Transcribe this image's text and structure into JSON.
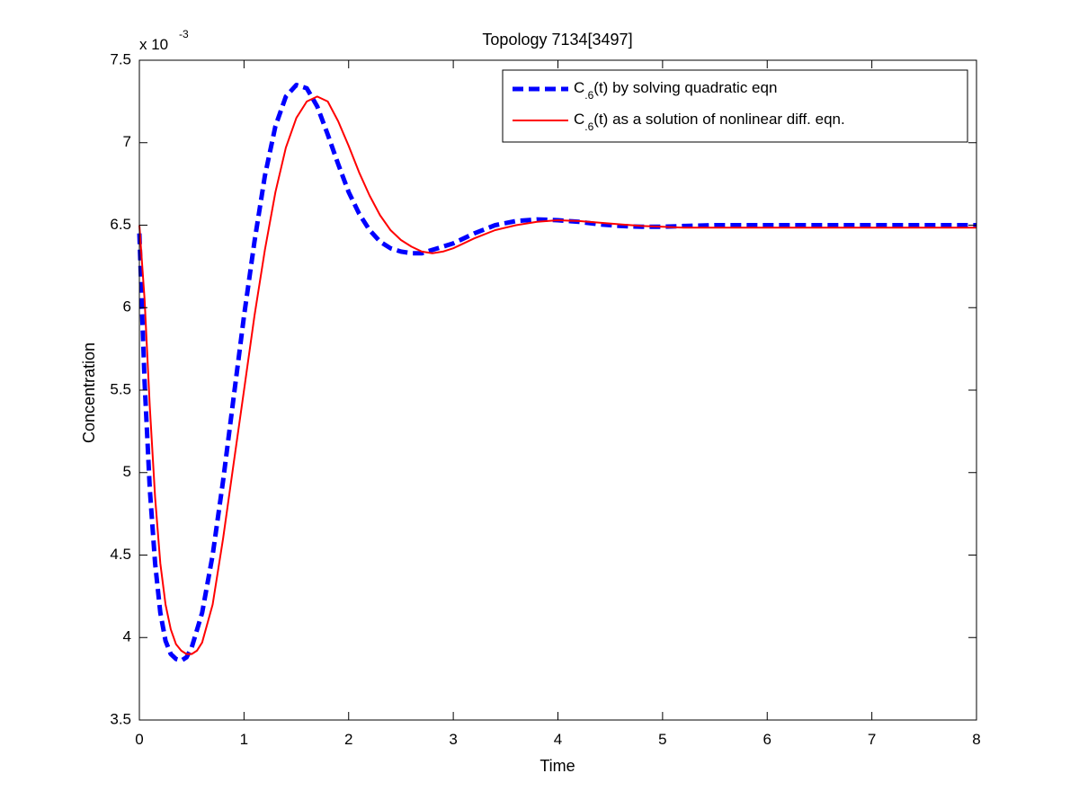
{
  "chart_data": {
    "type": "line",
    "title": "Topology 7134[3497]",
    "xlabel": "Time",
    "ylabel": "Concentration",
    "y_exponent_base": "x 10",
    "y_exponent_power": "-3",
    "xlim": [
      0,
      8
    ],
    "ylim": [
      3.5,
      7.5
    ],
    "y_multiplier": 0.001,
    "x_ticks": [
      0,
      1,
      2,
      3,
      4,
      5,
      6,
      7,
      8
    ],
    "y_ticks": [
      3.5,
      4,
      4.5,
      5,
      5.5,
      6,
      6.5,
      7,
      7.5
    ],
    "x_tick_labels": [
      "0",
      "1",
      "2",
      "3",
      "4",
      "5",
      "6",
      "7",
      "8"
    ],
    "y_tick_labels": [
      "3.5",
      "4",
      "4.5",
      "5",
      "5.5",
      "6",
      "6.5",
      "7",
      "7.5"
    ],
    "grid": false,
    "legend_position": "top-right",
    "series": [
      {
        "name": "C.6(t) by solving quadratic eqn",
        "legend_pre": "C",
        "legend_sub": ".6",
        "legend_post": "(t) by solving quadratic eqn",
        "color": "#0000ff",
        "style": "dashed",
        "x": [
          0,
          0.05,
          0.1,
          0.15,
          0.2,
          0.25,
          0.3,
          0.35,
          0.4,
          0.45,
          0.5,
          0.6,
          0.7,
          0.8,
          0.9,
          1.0,
          1.1,
          1.2,
          1.3,
          1.4,
          1.5,
          1.6,
          1.7,
          1.8,
          1.9,
          2.0,
          2.1,
          2.2,
          2.3,
          2.4,
          2.5,
          2.6,
          2.7,
          2.8,
          2.9,
          3.0,
          3.2,
          3.4,
          3.6,
          3.8,
          4.0,
          4.2,
          4.4,
          4.6,
          4.8,
          5.0,
          5.2,
          5.5,
          6.0,
          6.5,
          7.0,
          7.5,
          8.0
        ],
        "y": [
          6.45,
          5.55,
          4.9,
          4.45,
          4.15,
          3.98,
          3.9,
          3.87,
          3.86,
          3.88,
          3.94,
          4.15,
          4.5,
          4.95,
          5.45,
          5.95,
          6.4,
          6.8,
          7.1,
          7.28,
          7.35,
          7.33,
          7.22,
          7.05,
          6.87,
          6.7,
          6.57,
          6.47,
          6.4,
          6.36,
          6.34,
          6.33,
          6.33,
          6.35,
          6.37,
          6.39,
          6.45,
          6.5,
          6.525,
          6.535,
          6.53,
          6.52,
          6.505,
          6.495,
          6.49,
          6.49,
          6.495,
          6.5,
          6.5,
          6.5,
          6.5,
          6.5,
          6.5
        ]
      },
      {
        "name": "C.6(t) as a solution of nonlinear diff. eqn.",
        "legend_pre": "C",
        "legend_sub": ".6",
        "legend_post": "(t) as a solution of nonlinear diff. eqn.",
        "color": "#ff0000",
        "style": "solid",
        "x": [
          0,
          0.05,
          0.1,
          0.15,
          0.2,
          0.25,
          0.3,
          0.35,
          0.4,
          0.45,
          0.5,
          0.55,
          0.6,
          0.7,
          0.8,
          0.9,
          1.0,
          1.1,
          1.2,
          1.3,
          1.4,
          1.5,
          1.6,
          1.7,
          1.8,
          1.9,
          2.0,
          2.1,
          2.2,
          2.3,
          2.4,
          2.5,
          2.6,
          2.7,
          2.8,
          2.9,
          3.0,
          3.2,
          3.4,
          3.6,
          3.8,
          4.0,
          4.2,
          4.4,
          4.6,
          4.8,
          5.0,
          5.2,
          5.5,
          6.0,
          6.5,
          7.0,
          7.5,
          8.0
        ],
        "y": [
          6.5,
          6.05,
          5.4,
          4.85,
          4.45,
          4.2,
          4.05,
          3.96,
          3.92,
          3.9,
          3.9,
          3.92,
          3.97,
          4.2,
          4.6,
          5.05,
          5.5,
          5.95,
          6.35,
          6.7,
          6.97,
          7.15,
          7.25,
          7.28,
          7.25,
          7.13,
          6.98,
          6.82,
          6.68,
          6.56,
          6.47,
          6.41,
          6.37,
          6.34,
          6.33,
          6.34,
          6.36,
          6.42,
          6.47,
          6.5,
          6.52,
          6.53,
          6.525,
          6.515,
          6.505,
          6.495,
          6.49,
          6.485,
          6.485,
          6.485,
          6.485,
          6.485,
          6.485,
          6.485
        ]
      }
    ]
  }
}
